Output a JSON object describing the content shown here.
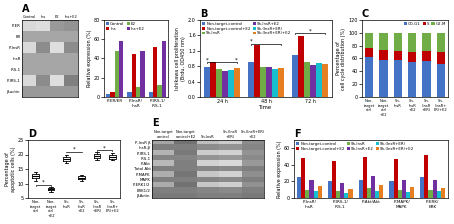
{
  "chart_data": [
    {
      "type": "heatmap",
      "title": "A",
      "categories": [
        "Control",
        "Ins",
        "E2",
        "Ins+E2"
      ],
      "rows": [
        "P-ER",
        "ER",
        "P-InsR",
        "InsR",
        "IRS-1",
        "P-IRS-1",
        "β-actin"
      ],
      "cells": [
        [
          0.85,
          0.87,
          0.6,
          0.58
        ],
        [
          0.65,
          0.65,
          0.65,
          0.65
        ],
        [
          0.85,
          0.55,
          0.87,
          0.55
        ],
        [
          0.65,
          0.65,
          0.65,
          0.65
        ],
        [
          0.65,
          0.65,
          0.65,
          0.65
        ],
        [
          0.85,
          0.55,
          0.87,
          0.5
        ],
        [
          0.6,
          0.6,
          0.6,
          0.6
        ]
      ]
    },
    {
      "type": "bar",
      "categories": [
        "P-ER/ER",
        "P-InsR/\nInsR",
        "P-IRS-1/\nIRS-1"
      ],
      "series": [
        {
          "name": "Control",
          "color": "#4472c4",
          "values": [
            3,
            5,
            5
          ]
        },
        {
          "name": "Ins",
          "color": "#c00000",
          "values": [
            5,
            45,
            52
          ]
        },
        {
          "name": "E2",
          "color": "#70ad47",
          "values": [
            48,
            10,
            12
          ]
        },
        {
          "name": "Ins+E2",
          "color": "#7030a0",
          "values": [
            58,
            48,
            58
          ]
        }
      ],
      "ylabel": "Relative expression (%)",
      "ylim": [
        0,
        80
      ],
      "yticks": [
        0,
        20,
        40,
        60,
        80
      ],
      "legend": "upper left"
    },
    {
      "type": "bar",
      "title": "B",
      "categories": [
        "24 h",
        "48 h",
        "72 h"
      ],
      "series": [
        {
          "name": "Non-target-control",
          "color": "#4472c4",
          "values": [
            0.78,
            0.9,
            1.1
          ]
        },
        {
          "name": "Non-target-control+E2",
          "color": "#c00000",
          "values": [
            0.9,
            1.35,
            1.58
          ]
        },
        {
          "name": "Sh-InsR",
          "color": "#70ad47",
          "values": [
            0.72,
            0.78,
            0.92
          ]
        },
        {
          "name": "Sh-InsR+E2",
          "color": "#7030a0",
          "values": [
            0.68,
            0.78,
            0.83
          ]
        },
        {
          "name": "Sh-(InsR+ER)",
          "color": "#17becf",
          "values": [
            0.7,
            0.73,
            0.88
          ]
        },
        {
          "name": "Sh-(InsR+ER)+E2",
          "color": "#e67e22",
          "values": [
            0.75,
            0.76,
            0.85
          ]
        }
      ],
      "xlabel": "Time",
      "ylabel": "Ishikawa cell proliferation\n(Brdu, OD450 nm)",
      "ylim": [
        0.0,
        2.0
      ],
      "yticks": [
        0.0,
        0.4,
        0.8,
        1.2,
        1.6,
        2.0
      ],
      "legend": "upper left",
      "annotations": [
        {
          "text": "*",
          "category": "24 h",
          "series": "Non-target-control",
          "y": 0.9
        },
        {
          "text": "*",
          "category": "24 h",
          "series": "Sh-(InsR+ER)+E2",
          "y": 0.9
        },
        {
          "text": "*",
          "category": "48 h",
          "series": "Non-target-control",
          "y": 1.38
        },
        {
          "text": "*",
          "category": "72 h",
          "y": 1.65
        }
      ]
    },
    {
      "type": "bar",
      "stacked": true,
      "title": "C",
      "categories": [
        "Non-\ntarget\nctrl",
        "Non-\ntarget\nctrl\n+E2",
        "Sh-\nInsR",
        "Sh-\nInsR\n+E2",
        "Sh-\n(InsR\n+ER)",
        "Sh-\n(InsR+\nER)+E2"
      ],
      "series": [
        {
          "name": "G0-G1",
          "color": "#4472c4",
          "values": [
            63,
            58,
            57,
            54,
            56,
            52
          ]
        },
        {
          "name": "S",
          "color": "#c00000",
          "values": [
            13,
            15,
            14,
            16,
            16,
            18
          ]
        },
        {
          "name": "G2-M",
          "color": "#70ad47",
          "values": [
            24,
            27,
            29,
            30,
            28,
            30
          ]
        }
      ],
      "ylabel": "Percentage of\ncell cycle distribution (%)",
      "ylim": [
        0,
        120
      ],
      "yticks": [
        0,
        20,
        40,
        60,
        80,
        100,
        120
      ],
      "legend": "upper right"
    },
    {
      "type": "box",
      "title": "D",
      "categories": [
        "Non-\ntarget\nctrl",
        "Non-\ntarget\nctrl\n+E2",
        "Sh-\nInsR",
        "Sh-\nInsR\n+E2",
        "Sh-\n(InsR\n+ER)",
        "Sh-\n(InsR+\nER)+E2"
      ],
      "medians": [
        12.5,
        8.0,
        18.5,
        12.0,
        19.5,
        19.0
      ],
      "q1": [
        11.8,
        7.6,
        17.8,
        11.5,
        18.8,
        18.5
      ],
      "q3": [
        13.2,
        8.4,
        19.2,
        12.5,
        20.2,
        19.8
      ],
      "whislo": [
        11.0,
        7.1,
        17.2,
        11.0,
        18.2,
        18.0
      ],
      "whishi": [
        13.8,
        8.8,
        19.8,
        13.0,
        20.8,
        20.5
      ],
      "ylabel": "Percentage of\napoptotic cells (%)",
      "ylim": [
        5,
        25
      ],
      "yticks": [
        5,
        10,
        15,
        20,
        25
      ],
      "annotations": [
        {
          "text": "*",
          "from": "Non-\ntarget\nctrl",
          "to": "Non-\ntarget\nctrl\n+E2",
          "y": 9.5
        },
        {
          "text": "*",
          "from": "Sh-\nInsR",
          "to": "Sh-\nInsR\n+E2",
          "y": 21.0
        },
        {
          "text": "*",
          "from": "Sh-\n(InsR\n+ER)",
          "to": "Sh-\n(InsR+\nER)+E2",
          "y": 21.5
        }
      ]
    },
    {
      "type": "heatmap",
      "title": "E",
      "categories": [
        "Non-target\ncontrol",
        "Non-target\ncontrol+E2",
        "Sh-InsR",
        "Sh-(InsR\n+ER)",
        "Sh-(InsR+ER)\n+E2"
      ],
      "rows": [
        "P-InsR β",
        "InsR-β",
        "P-IRS-1",
        "IRS-1",
        "P-Akt",
        "Total Akt",
        "P-MAPK",
        "MAPK",
        "P-ERK1/2",
        "ERK1/2",
        "β-Actin"
      ],
      "cells": [
        [
          0.35,
          0.55,
          0.25,
          0.2,
          0.45
        ],
        [
          0.5,
          0.5,
          0.45,
          0.42,
          0.48
        ],
        [
          0.3,
          0.52,
          0.2,
          0.18,
          0.42
        ],
        [
          0.48,
          0.48,
          0.42,
          0.4,
          0.46
        ],
        [
          0.28,
          0.5,
          0.18,
          0.15,
          0.4
        ],
        [
          0.5,
          0.5,
          0.48,
          0.46,
          0.5
        ],
        [
          0.32,
          0.54,
          0.22,
          0.18,
          0.44
        ],
        [
          0.5,
          0.5,
          0.48,
          0.46,
          0.5
        ],
        [
          0.33,
          0.55,
          0.22,
          0.19,
          0.43
        ],
        [
          0.5,
          0.5,
          0.48,
          0.46,
          0.5
        ],
        [
          0.52,
          0.52,
          0.5,
          0.5,
          0.52
        ]
      ]
    },
    {
      "type": "bar",
      "title": "F",
      "categories": [
        "P-InsR/\nInsR",
        "P-IRS-1/\nIRS-1",
        "P-Akt/Akt",
        "P-MAPK/\nMAPK",
        "P-ERK/\nERK"
      ],
      "series": [
        {
          "name": "Non-target-control",
          "color": "#4472c4",
          "values": [
            25,
            20,
            22,
            20,
            25
          ]
        },
        {
          "name": "Non-target-control+E2",
          "color": "#c00000",
          "values": [
            48,
            45,
            50,
            47,
            52
          ]
        },
        {
          "name": "Sh-InsR",
          "color": "#70ad47",
          "values": [
            10,
            8,
            12,
            10,
            10
          ]
        },
        {
          "name": "Sh-InsR+E2",
          "color": "#7030a0",
          "values": [
            22,
            18,
            26,
            22,
            22
          ]
        },
        {
          "name": "Sh-(InsR+ER)",
          "color": "#17becf",
          "values": [
            8,
            6,
            9,
            7,
            8
          ]
        },
        {
          "name": "Sh-(InsR+ER)+E2",
          "color": "#e67e22",
          "values": [
            14,
            11,
            16,
            13,
            12
          ]
        }
      ],
      "ylabel": "Relative expression (%)",
      "ylim": [
        0,
        70
      ],
      "yticks": [
        0,
        20,
        40,
        60
      ],
      "legend": "upper left"
    }
  ]
}
